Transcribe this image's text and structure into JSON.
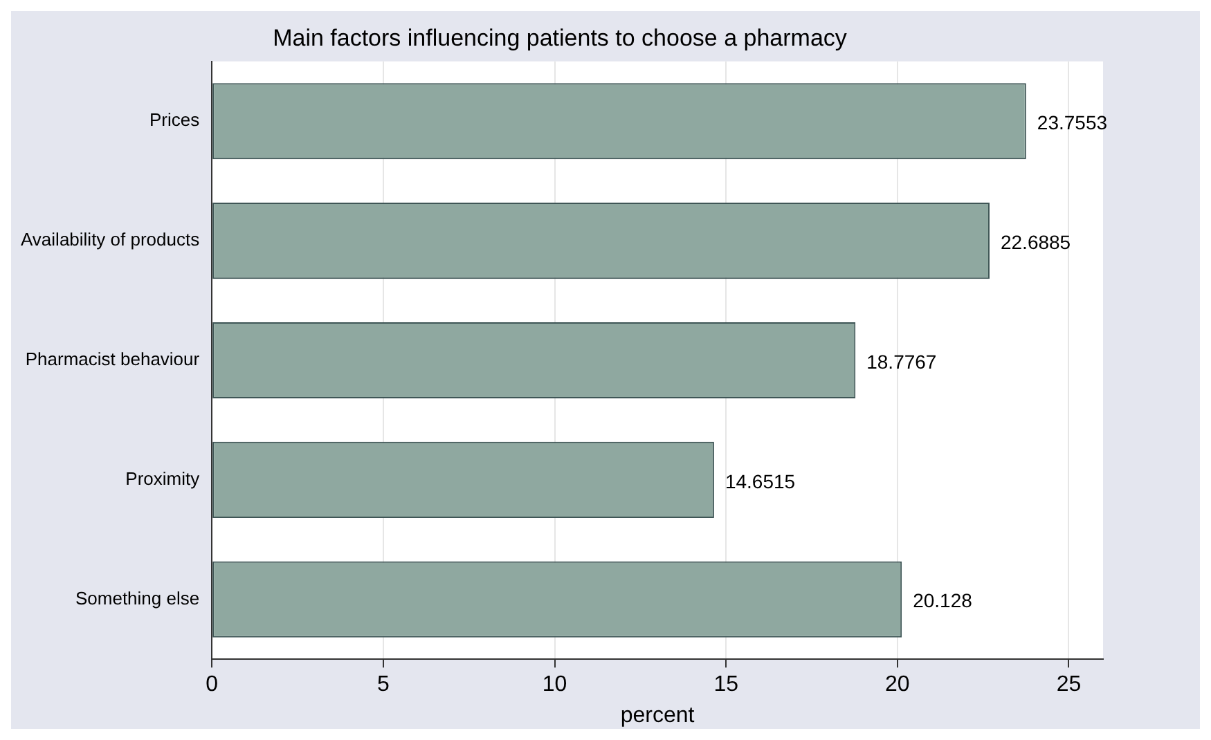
{
  "chart_data": {
    "type": "bar",
    "orientation": "horizontal",
    "title": "Main factors influencing patients to choose a pharmacy",
    "xlabel": "percent",
    "categories": [
      "Prices",
      "Availability of products",
      "Pharmacist behaviour",
      "Proximity",
      "Something else"
    ],
    "values": [
      23.7553,
      22.6885,
      18.7767,
      14.6515,
      20.128
    ],
    "color": "#8fa8a0",
    "xlim": [
      0,
      26
    ],
    "xticks": [
      0,
      5,
      10,
      15,
      20,
      25
    ],
    "grid": "x",
    "data_labels": true,
    "legend": false
  }
}
